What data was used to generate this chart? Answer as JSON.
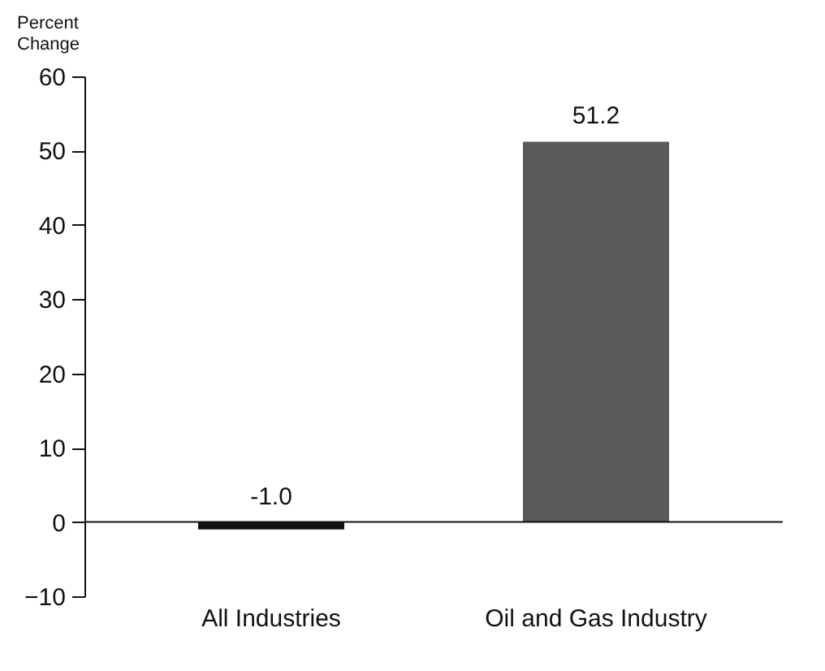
{
  "chart_data": {
    "type": "bar",
    "ylabel": "Percent Change",
    "categories": [
      "All Industries",
      "Oil and Gas Industry"
    ],
    "values": [
      -1.0,
      51.2
    ],
    "colors": [
      "#111111",
      "#595959"
    ],
    "value_labels": [
      "-1.0",
      "51.2"
    ],
    "ylim": [
      -10,
      60
    ],
    "yticks": [
      -10,
      0,
      10,
      20,
      30,
      40,
      50,
      60
    ],
    "ref_lines": [
      {
        "axis": "y",
        "value": 0,
        "color": "#111111",
        "line_style": "solid"
      }
    ],
    "grid": false
  }
}
